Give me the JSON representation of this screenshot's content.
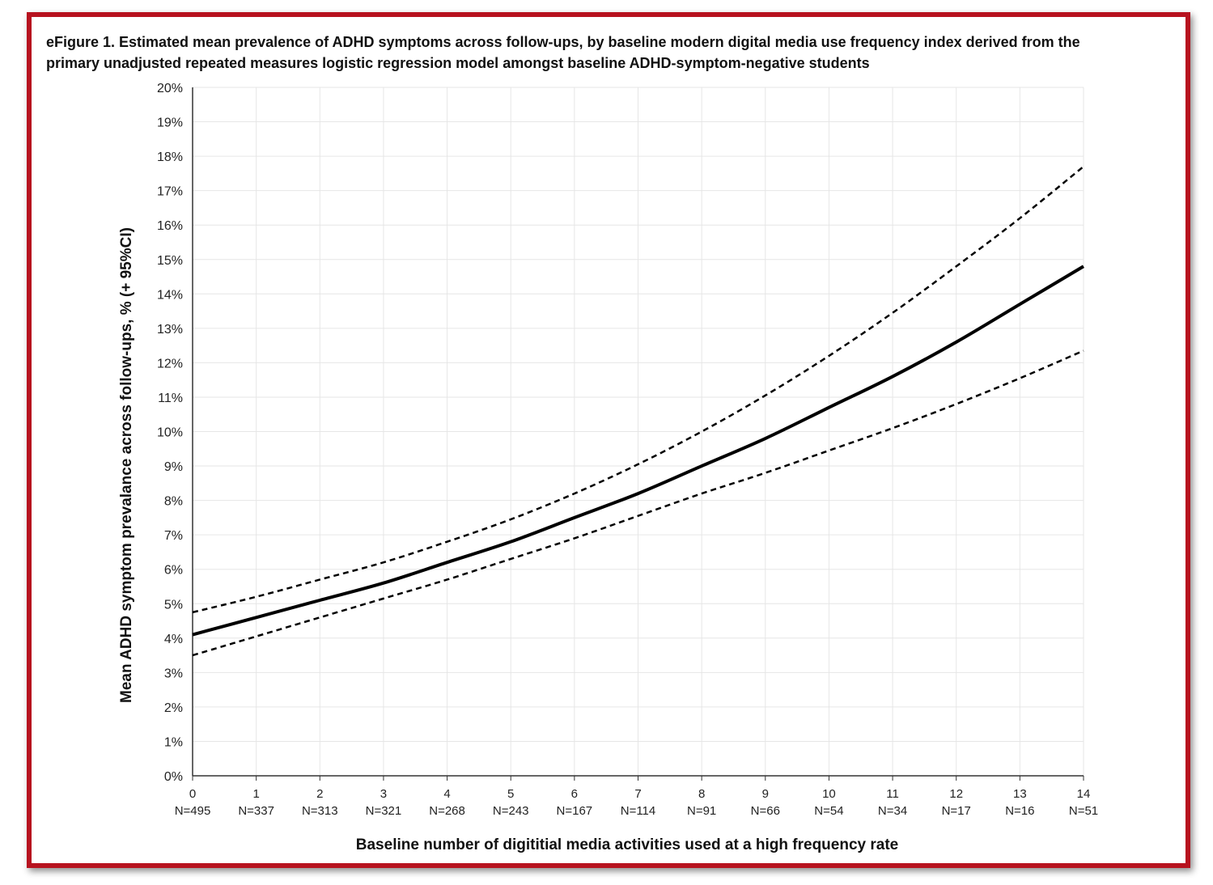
{
  "figure": {
    "title_line1": "eFigure 1. Estimated mean prevalence of ADHD symptoms across follow-ups, by baseline modern digital media use frequency index derived from the",
    "title_line2": "primary unadjusted repeated measures logistic regression model amongst baseline ADHD-symptom-negative students"
  },
  "colors": {
    "frame_border": "#b7121f",
    "line": "#000000",
    "grid": "#e6e6e6",
    "axis": "#333333"
  },
  "chart_data": {
    "type": "line",
    "xlabel": "Baseline number of digititial media activities used at a high frequency rate",
    "ylabel": "Mean ADHD symptom prevalance across follow-ups, % (+ 95%CI)",
    "x": [
      0,
      1,
      2,
      3,
      4,
      5,
      6,
      7,
      8,
      9,
      10,
      11,
      12,
      13,
      14
    ],
    "x_tick_labels": [
      "0",
      "1",
      "2",
      "3",
      "4",
      "5",
      "6",
      "7",
      "8",
      "9",
      "10",
      "11",
      "12",
      "13",
      "14"
    ],
    "x_sublabels": [
      "N=495",
      "N=337",
      "N=313",
      "N=321",
      "N=268",
      "N=243",
      "N=167",
      "N=114",
      "N=91",
      "N=66",
      "N=54",
      "N=34",
      "N=17",
      "N=16",
      "N=51"
    ],
    "y_tick_labels": [
      "0%",
      "1%",
      "2%",
      "3%",
      "4%",
      "5%",
      "6%",
      "7%",
      "8%",
      "9%",
      "10%",
      "11%",
      "12%",
      "13%",
      "14%",
      "15%",
      "16%",
      "17%",
      "18%",
      "19%",
      "20%"
    ],
    "xlim": [
      0,
      14
    ],
    "ylim": [
      0,
      20
    ],
    "grid": true,
    "series": [
      {
        "role": "estimate",
        "style": "solid",
        "values": [
          4.1,
          4.6,
          5.1,
          5.6,
          6.2,
          6.8,
          7.5,
          8.2,
          9.0,
          9.8,
          10.7,
          11.6,
          12.6,
          13.7,
          14.8
        ]
      },
      {
        "role": "upper_ci",
        "style": "dashed",
        "values": [
          4.75,
          5.2,
          5.7,
          6.2,
          6.8,
          7.45,
          8.2,
          9.05,
          10.0,
          11.05,
          12.2,
          13.45,
          14.8,
          16.2,
          17.7
        ]
      },
      {
        "role": "lower_ci",
        "style": "dashed",
        "values": [
          3.5,
          4.05,
          4.6,
          5.15,
          5.7,
          6.3,
          6.9,
          7.55,
          8.2,
          8.8,
          9.45,
          10.1,
          10.8,
          11.55,
          12.35
        ]
      }
    ]
  }
}
